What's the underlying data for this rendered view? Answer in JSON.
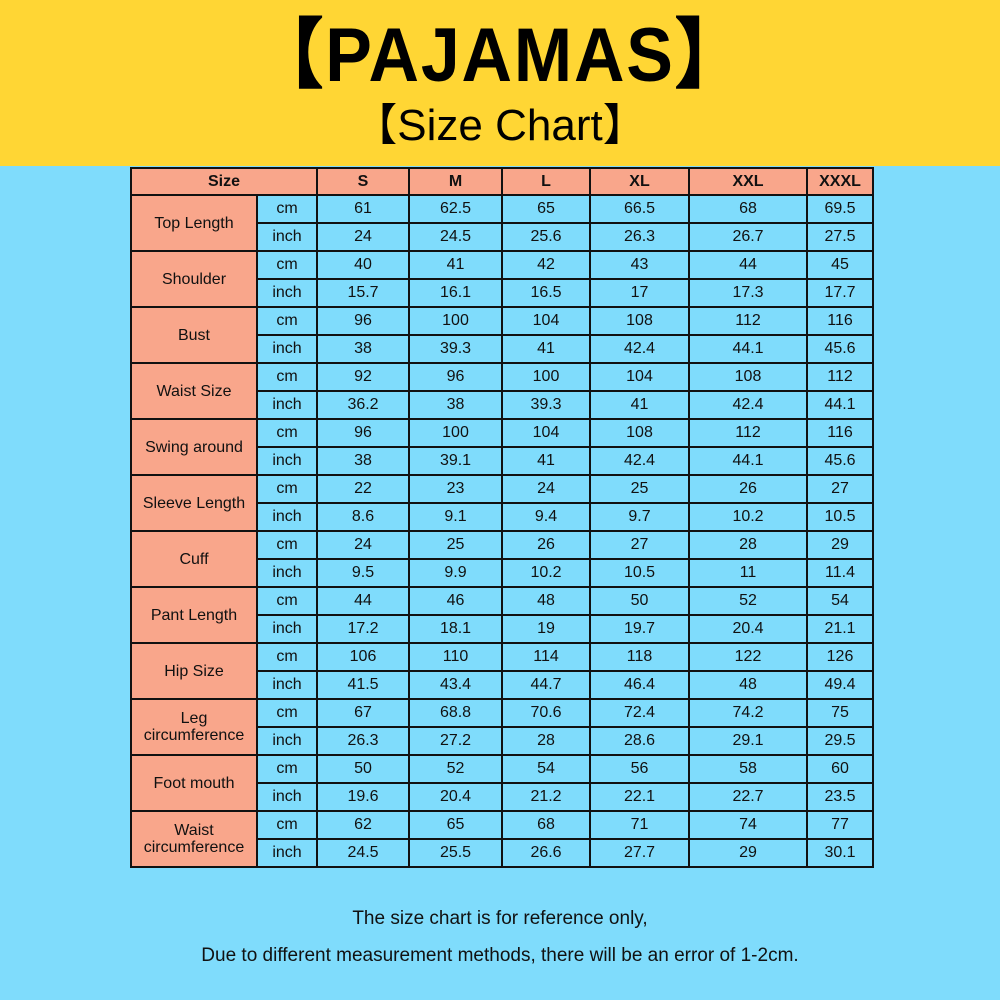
{
  "header": {
    "title": "【PAJAMAS】",
    "subtitle": "【Size Chart】"
  },
  "colors": {
    "banner": "#ffd634",
    "background": "#7fdcfc",
    "label_cells": "#f9a68b"
  },
  "table": {
    "size_header": "Size",
    "sizes": [
      "S",
      "M",
      "L",
      "XL",
      "XXL",
      "XXXL"
    ],
    "units": [
      "cm",
      "inch"
    ],
    "rows": [
      {
        "label": "Top Length",
        "cm": [
          "61",
          "62.5",
          "65",
          "66.5",
          "68",
          "69.5"
        ],
        "inch": [
          "24",
          "24.5",
          "25.6",
          "26.3",
          "26.7",
          "27.5"
        ]
      },
      {
        "label": "Shoulder",
        "cm": [
          "40",
          "41",
          "42",
          "43",
          "44",
          "45"
        ],
        "inch": [
          "15.7",
          "16.1",
          "16.5",
          "17",
          "17.3",
          "17.7"
        ]
      },
      {
        "label": "Bust",
        "cm": [
          "96",
          "100",
          "104",
          "108",
          "112",
          "116"
        ],
        "inch": [
          "38",
          "39.3",
          "41",
          "42.4",
          "44.1",
          "45.6"
        ]
      },
      {
        "label": "Waist Size",
        "cm": [
          "92",
          "96",
          "100",
          "104",
          "108",
          "112"
        ],
        "inch": [
          "36.2",
          "38",
          "39.3",
          "41",
          "42.4",
          "44.1"
        ]
      },
      {
        "label": "Swing around",
        "cm": [
          "96",
          "100",
          "104",
          "108",
          "112",
          "116"
        ],
        "inch": [
          "38",
          "39.1",
          "41",
          "42.4",
          "44.1",
          "45.6"
        ]
      },
      {
        "label": "Sleeve Length",
        "cm": [
          "22",
          "23",
          "24",
          "25",
          "26",
          "27"
        ],
        "inch": [
          "8.6",
          "9.1",
          "9.4",
          "9.7",
          "10.2",
          "10.5"
        ]
      },
      {
        "label": "Cuff",
        "cm": [
          "24",
          "25",
          "26",
          "27",
          "28",
          "29"
        ],
        "inch": [
          "9.5",
          "9.9",
          "10.2",
          "10.5",
          "11",
          "11.4"
        ]
      },
      {
        "label": "Pant Length",
        "cm": [
          "44",
          "46",
          "48",
          "50",
          "52",
          "54"
        ],
        "inch": [
          "17.2",
          "18.1",
          "19",
          "19.7",
          "20.4",
          "21.1"
        ]
      },
      {
        "label": "Hip Size",
        "cm": [
          "106",
          "110",
          "114",
          "118",
          "122",
          "126"
        ],
        "inch": [
          "41.5",
          "43.4",
          "44.7",
          "46.4",
          "48",
          "49.4"
        ]
      },
      {
        "label": "Leg circumference",
        "cm": [
          "67",
          "68.8",
          "70.6",
          "72.4",
          "74.2",
          "75"
        ],
        "inch": [
          "26.3",
          "27.2",
          "28",
          "28.6",
          "29.1",
          "29.5"
        ]
      },
      {
        "label": "Foot mouth",
        "cm": [
          "50",
          "52",
          "54",
          "56",
          "58",
          "60"
        ],
        "inch": [
          "19.6",
          "20.4",
          "21.2",
          "22.1",
          "22.7",
          "23.5"
        ]
      },
      {
        "label": "Waist circumference",
        "cm": [
          "62",
          "65",
          "68",
          "71",
          "74",
          "77"
        ],
        "inch": [
          "24.5",
          "25.5",
          "26.6",
          "27.7",
          "29",
          "30.1"
        ]
      }
    ]
  },
  "notes": [
    "The size chart is for reference only,",
    "Due to different measurement methods, there will be an error of 1-2cm."
  ]
}
